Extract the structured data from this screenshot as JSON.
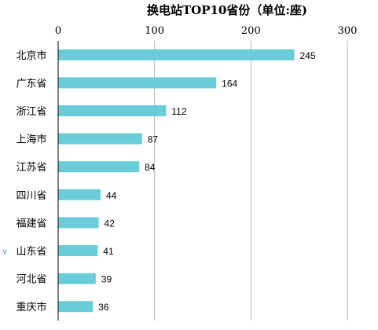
{
  "chart_data": {
    "type": "bar",
    "orientation": "horizontal",
    "title": "换电站TOP10省份（单位:座)",
    "categories": [
      "北京市",
      "广东省",
      "浙江省",
      "上海市",
      "江苏省",
      "四川省",
      "福建省",
      "山东省",
      "河北省",
      "重庆市"
    ],
    "values": [
      245,
      164,
      112,
      87,
      84,
      44,
      42,
      41,
      39,
      36
    ],
    "xlim": [
      0,
      300
    ],
    "xticks": [
      "0",
      "100",
      "200",
      "300"
    ],
    "axis_position": "top",
    "grid": true,
    "bar_color": "#69cdd9",
    "data_labels": true
  },
  "side_mark": "v"
}
